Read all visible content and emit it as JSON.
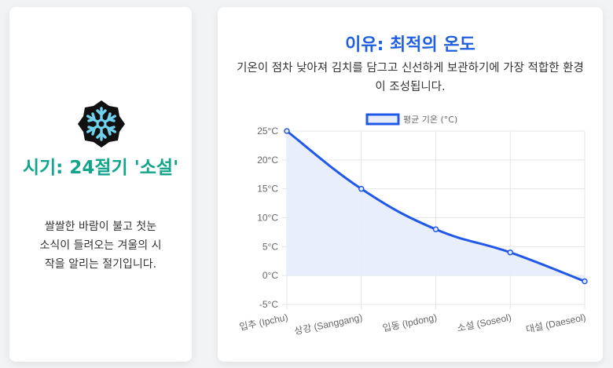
{
  "left": {
    "icon": "snowflake-icon",
    "title": "시기: 24절기 '소설'",
    "description": "쌀쌀한 바람이 불고 첫눈 소식이 들려오는 겨울의 시작을 알리는 절기입니다."
  },
  "right": {
    "title": "이유: 최적의 온도",
    "description": "기온이 점차 낮아져 김치를 담그고 신선하게 보관하기에 가장 적합한 환경이 조성됩니다."
  },
  "colors": {
    "accent_teal": "#12a58c",
    "accent_blue": "#1f5fe0",
    "line": "#2158e8",
    "fill": "#e6ecfc"
  },
  "chart_data": {
    "type": "line",
    "categories": [
      "입추 (Ipchu)",
      "상강 (Sanggang)",
      "입동 (Ipdong)",
      "소설 (Soseol)",
      "대설 (Daeseol)"
    ],
    "series": [
      {
        "name": "평균 기온 (°C)",
        "values": [
          25,
          15,
          8,
          4,
          -1
        ]
      }
    ],
    "ylim": [
      -5,
      25
    ],
    "yticks": [
      "25°C",
      "20°C",
      "15°C",
      "10°C",
      "5°C",
      "0°C",
      "-5°C"
    ],
    "ytick_values": [
      25,
      20,
      15,
      10,
      5,
      0,
      -5
    ],
    "fill": "area",
    "grid": true,
    "legend": "top-center"
  }
}
